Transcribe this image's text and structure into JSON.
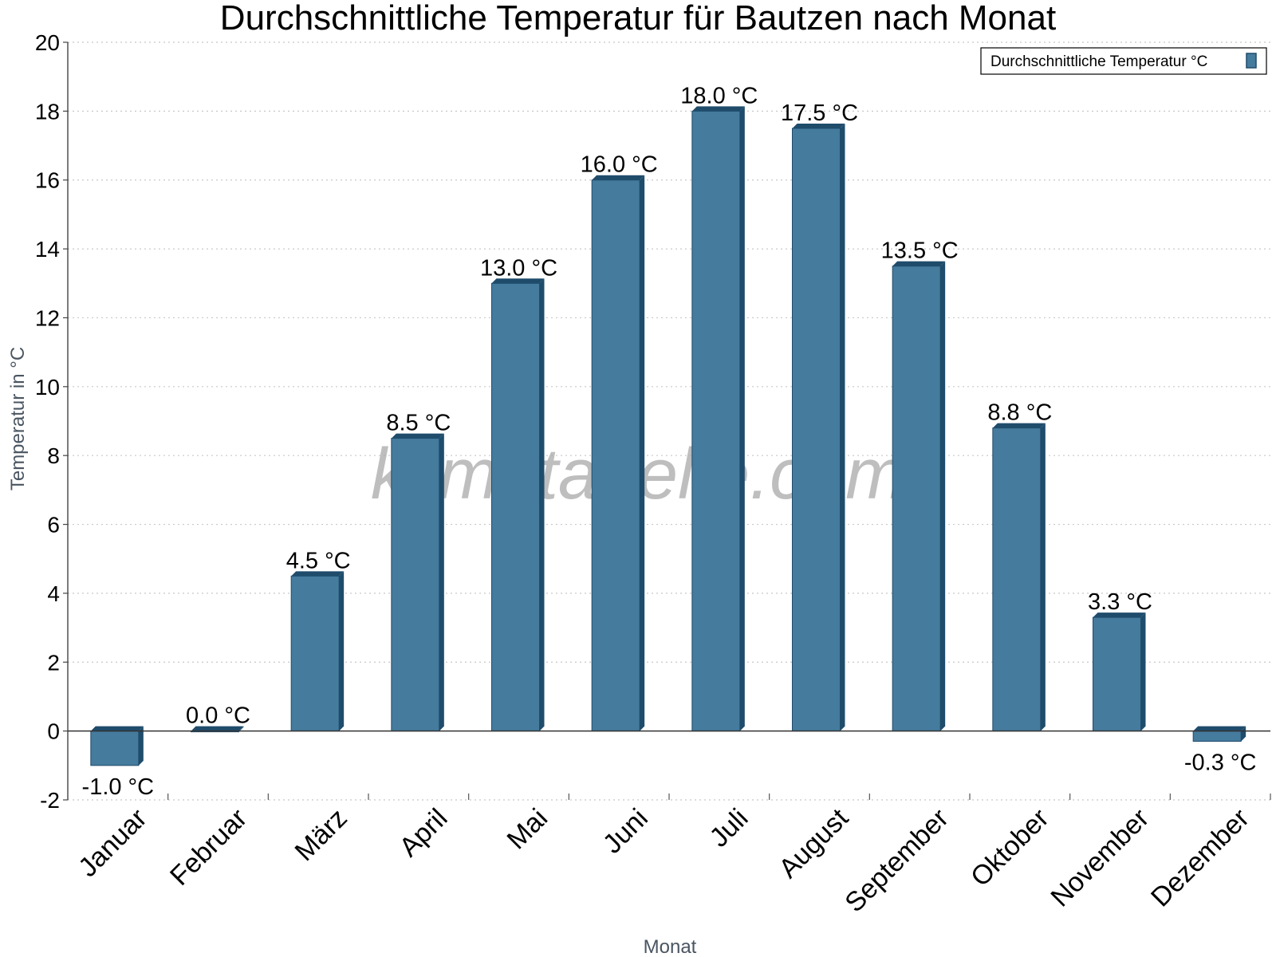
{
  "chart_data": {
    "type": "bar",
    "title": "Durchschnittliche Temperatur für Bautzen nach Monat",
    "xlabel": "Monat",
    "ylabel": "Temperatur in °C",
    "categories": [
      "Januar",
      "Februar",
      "März",
      "April",
      "Mai",
      "Juni",
      "Juli",
      "August",
      "September",
      "Oktober",
      "November",
      "Dezember"
    ],
    "series": [
      {
        "name": "Durchschnittliche Temperatur °C",
        "values": [
          -1.0,
          0.0,
          4.5,
          8.5,
          13.0,
          16.0,
          18.0,
          17.5,
          13.5,
          8.8,
          3.3,
          -0.3
        ],
        "labels": [
          "-1.0 °C",
          "0.0 °C",
          "4.5 °C",
          "8.5 °C",
          "13.0 °C",
          "16.0 °C",
          "18.0 °C",
          "17.5 °C",
          "13.5 °C",
          "8.8 °C",
          "3.3 °C",
          "-0.3 °C"
        ],
        "color": "#457b9d"
      }
    ],
    "ylim": [
      -2,
      20
    ],
    "yticks": [
      -2,
      0,
      2,
      4,
      6,
      8,
      10,
      12,
      14,
      16,
      18,
      20
    ],
    "grid": true,
    "legend_position": "top-right"
  },
  "watermark": "klimatabelle.com",
  "colors": {
    "bar": "#457b9d",
    "bar_shade": "#1f4c6b",
    "grid": "#c8c8c8"
  }
}
